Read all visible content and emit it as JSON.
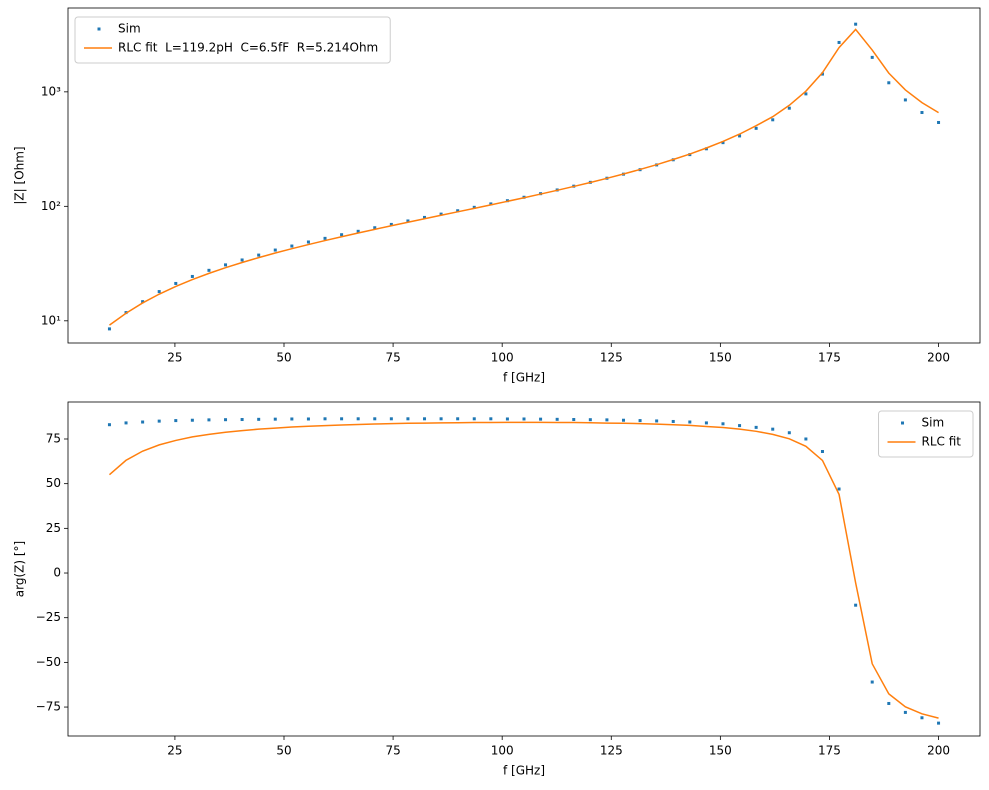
{
  "chart_data": [
    {
      "type": "line",
      "yscale": "log",
      "xlabel": "f [GHz]",
      "ylabel": "|Z| [Ohm]",
      "legend": "upper left",
      "xlim": [
        0.5,
        209.5
      ],
      "xticks": [
        25,
        50,
        75,
        100,
        125,
        150,
        175,
        200
      ],
      "ylim": [
        6.4,
        5400
      ],
      "yticks": [
        {
          "value": 10,
          "label": "10¹"
        },
        {
          "value": 100,
          "label": "10²"
        },
        {
          "value": 1000,
          "label": "10³"
        }
      ],
      "x": [
        10,
        13.8,
        17.6,
        21.4,
        25.2,
        29,
        32.8,
        36.6,
        40.4,
        44.2,
        48,
        51.8,
        55.6,
        59.4,
        63.2,
        67,
        70.8,
        74.6,
        78.4,
        82.2,
        86,
        89.8,
        93.6,
        97.4,
        101.2,
        105,
        108.8,
        112.6,
        116.4,
        120.2,
        124,
        127.8,
        131.6,
        135.4,
        139.2,
        143,
        146.8,
        150.6,
        154.4,
        158.2,
        162,
        165.8,
        169.6,
        173.4,
        177.2,
        181,
        184.8,
        188.6,
        192.4,
        196.2,
        200
      ],
      "series": [
        {
          "name": "Sim",
          "style": "markers",
          "color": "#1f77b4",
          "values": [
            8.5,
            11.8,
            14.7,
            18.0,
            21.2,
            24.4,
            27.6,
            30.8,
            34.0,
            37.5,
            41.5,
            45.0,
            48.8,
            52.5,
            56.5,
            60.5,
            65.0,
            69.5,
            74.5,
            80.0,
            85.5,
            91.5,
            98.0,
            105,
            112,
            120,
            129,
            139,
            150,
            162,
            176,
            191,
            209,
            230,
            255,
            283,
            318,
            360,
            412,
            480,
            570,
            720,
            960,
            1430,
            2700,
            3900,
            2000,
            1200,
            850,
            660,
            540
          ]
        },
        {
          "name": "RLC fit  L=119.2pH  C=6.5fF  R=5.214Ohm",
          "style": "line",
          "color": "#ff7f0e",
          "values": [
            9.16,
            11.65,
            14.32,
            17.1,
            19.97,
            22.93,
            25.97,
            29.1,
            32.32,
            35.64,
            39.09,
            42.64,
            46.35,
            50.21,
            54.25,
            58.48,
            62.93,
            67.64,
            72.6,
            77.89,
            83.52,
            89.55,
            96.04,
            103.0,
            110.6,
            118.9,
            128.0,
            138.0,
            149.2,
            161.6,
            175.7,
            191.6,
            209.9,
            231.1,
            256.4,
            286.3,
            323.2,
            368.7,
            427.4,
            506,
            606.7,
            763,
            1014,
            1472,
            2437,
            3507,
            2318,
            1458,
            1039,
            805,
            658
          ]
        }
      ]
    },
    {
      "type": "line",
      "yscale": "linear",
      "xlabel": "f [GHz]",
      "ylabel": "arg(Z) [°]",
      "legend": "upper right",
      "xlim": [
        0.5,
        209.5
      ],
      "xticks": [
        25,
        50,
        75,
        100,
        125,
        150,
        175,
        200
      ],
      "ylim": [
        -91.2,
        95.7
      ],
      "yticks": [
        {
          "value": -75,
          "label": "−75"
        },
        {
          "value": -50,
          "label": "−50"
        },
        {
          "value": -25,
          "label": "−25"
        },
        0,
        25,
        50,
        75
      ],
      "x": [
        10,
        13.8,
        17.6,
        21.4,
        25.2,
        29,
        32.8,
        36.6,
        40.4,
        44.2,
        48,
        51.8,
        55.6,
        59.4,
        63.2,
        67,
        70.8,
        74.6,
        78.4,
        82.2,
        86,
        89.8,
        93.6,
        97.4,
        101.2,
        105,
        108.8,
        112.6,
        116.4,
        120.2,
        124,
        127.8,
        131.6,
        135.4,
        139.2,
        143,
        146.8,
        150.6,
        154.4,
        158.2,
        162,
        165.8,
        169.6,
        173.4,
        177.2,
        181,
        184.8,
        188.6,
        192.4,
        196.2,
        200
      ],
      "series": [
        {
          "name": "Sim",
          "style": "markers",
          "color": "#1f77b4",
          "values": [
            83,
            84,
            84.5,
            85,
            85.3,
            85.5,
            85.7,
            85.8,
            85.9,
            86,
            86.1,
            86.2,
            86.2,
            86.3,
            86.3,
            86.3,
            86.3,
            86.3,
            86.3,
            86.3,
            86.3,
            86.3,
            86.3,
            86.3,
            86.2,
            86.2,
            86.1,
            86,
            85.9,
            85.8,
            85.7,
            85.5,
            85.3,
            85.1,
            84.8,
            84.5,
            84,
            83.5,
            82.5,
            81.5,
            80.5,
            78.5,
            75,
            68,
            47,
            -18,
            -61,
            -73,
            -78,
            -81,
            -84
          ]
        },
        {
          "name": "RLC fit",
          "style": "line",
          "color": "#ff7f0e",
          "values": [
            55.0,
            63.1,
            68.2,
            71.7,
            74.2,
            76.2,
            77.6,
            78.8,
            79.7,
            80.5,
            81.1,
            81.7,
            82.1,
            82.5,
            82.8,
            83.1,
            83.4,
            83.6,
            83.8,
            83.9,
            84.0,
            84.1,
            84.2,
            84.2,
            84.3,
            84.3,
            84.3,
            84.2,
            84.2,
            84.1,
            83.9,
            83.8,
            83.6,
            83.3,
            83.0,
            82.6,
            82.0,
            81.4,
            80.5,
            79.3,
            77.6,
            75.1,
            70.9,
            63.0,
            44.0,
            -5.5,
            -50.8,
            -67.6,
            -74.9,
            -78.8,
            -81.2
          ]
        }
      ]
    }
  ]
}
